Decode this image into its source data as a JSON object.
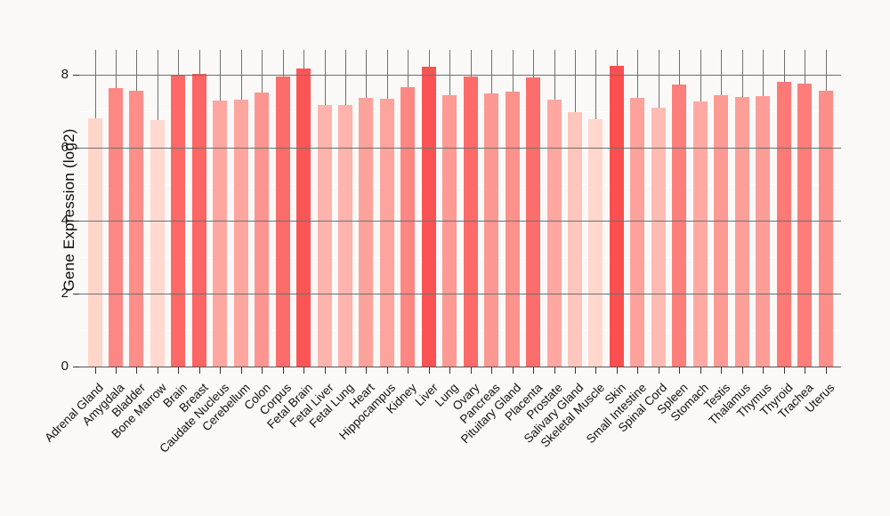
{
  "chart_data": {
    "type": "bar",
    "title": "",
    "xlabel": "",
    "ylabel": "Gene Expression (log2)",
    "ylim": [
      0,
      8.67
    ],
    "yticks": [
      0,
      2,
      4,
      6,
      8
    ],
    "minor_gridlines_at": [
      1,
      3,
      5,
      7
    ],
    "legend_position": "none",
    "grid": "major gray horizontal + per-category vertical lines, white minor horizontal lines",
    "background_color": "#faf9f8",
    "major_grid_color": "#6f6f6f",
    "minor_grid_color": "#ffffff",
    "categories": [
      "Adrenal Gland",
      "Amygdala",
      "Bladder",
      "Bone Marrow",
      "Brain",
      "Breast",
      "Caudate Nucleus",
      "Cerebellum",
      "Colon",
      "Corpus",
      "Fetal Brain",
      "Fetal Liver",
      "Fetal Lung",
      "Heart",
      "Hippocampus",
      "Kidney",
      "Liver",
      "Lung",
      "Ovary",
      "Pancreas",
      "Pituitary Gland",
      "Placenta",
      "Prostate",
      "Salivary Gland",
      "Skeletal Muscle",
      "Skin",
      "Small Intestine",
      "Spinal Cord",
      "Spleen",
      "Stomach",
      "Testis",
      "Thalamus",
      "Thymus",
      "Thyroid",
      "Trachea",
      "Uterus"
    ],
    "values": [
      6.8,
      7.63,
      7.56,
      6.75,
      7.97,
      8.01,
      7.29,
      7.31,
      7.5,
      7.93,
      8.17,
      7.16,
      7.16,
      7.35,
      7.33,
      7.65,
      8.2,
      7.44,
      7.94,
      7.47,
      7.53,
      7.91,
      7.3,
      6.97,
      6.78,
      8.24,
      7.35,
      7.08,
      7.73,
      7.26,
      7.43,
      7.38,
      7.4,
      7.79,
      7.75,
      7.56
    ],
    "color_scale": {
      "description": "bar fill mapped to value, light pink (low) to red (high)",
      "light_color": "#FFDED3",
      "dark_color": "#FB4A4A",
      "domain": [
        6.7,
        8.3
      ]
    }
  }
}
